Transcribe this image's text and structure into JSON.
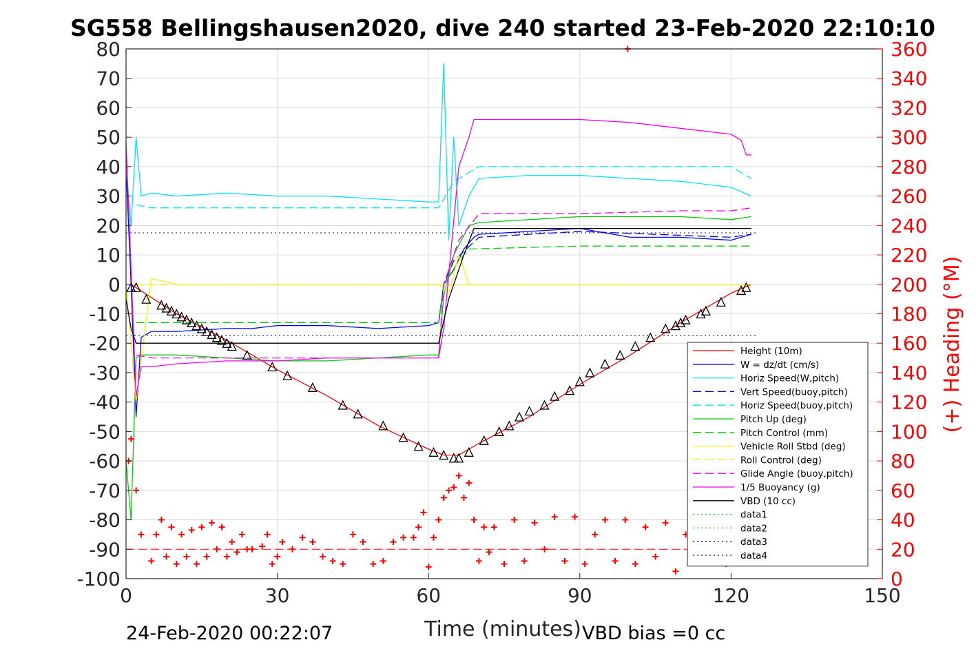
{
  "chart_data": {
    "type": "line",
    "title": "SG558 Bellingshausen2020, dive 240 started 23-Feb-2020 22:10:10",
    "xlabel": "Time (minutes)",
    "ylabel": "",
    "y2label": "(+) Heading (°M)",
    "xlim": [
      0,
      150
    ],
    "ylim": [
      -100,
      80
    ],
    "y2lim": [
      0,
      360
    ],
    "xticks": [
      "0",
      "30",
      "60",
      "90",
      "120",
      "150"
    ],
    "yticks": [
      "80",
      "70",
      "60",
      "50",
      "40",
      "30",
      "20",
      "10",
      "0",
      "-10",
      "-20",
      "-30",
      "-40",
      "-50",
      "-60",
      "-70",
      "-80",
      "-90",
      "-100"
    ],
    "y2ticks": [
      "360",
      "340",
      "320",
      "300",
      "280",
      "260",
      "240",
      "220",
      "200",
      "180",
      "160",
      "140",
      "120",
      "100",
      "80",
      "60",
      "40",
      "20",
      "0"
    ],
    "grid": true,
    "legend_position": "lower-right",
    "footer_left": "24-Feb-2020 00:22:07",
    "footer_right": "VBD bias =0 cc",
    "series": [
      {
        "name": "Height (10m)",
        "color": "#ff0000",
        "style": "solid",
        "x": [
          1,
          10,
          20,
          30,
          40,
          50,
          60,
          63,
          66,
          70,
          80,
          90,
          100,
          110,
          120,
          124
        ],
        "y": [
          0,
          -10,
          -19,
          -29,
          -38,
          -48,
          -56,
          -58,
          -58,
          -54,
          -45,
          -34,
          -24,
          -13,
          -3,
          0
        ]
      },
      {
        "name": "W = dz/dt (cm/s)",
        "color": "#0000ff",
        "style": "solid",
        "x": [
          0,
          1,
          2,
          3,
          5,
          10,
          20,
          25,
          30,
          40,
          50,
          60,
          62,
          63,
          65,
          67,
          69,
          70,
          80,
          90,
          100,
          110,
          120,
          124
        ],
        "y": [
          40,
          0,
          -45,
          -18,
          -16,
          -16,
          -15,
          -15,
          -14,
          -14,
          -15,
          -14,
          -13,
          0,
          5,
          12,
          16,
          17,
          18,
          19,
          16,
          16,
          15,
          17
        ]
      },
      {
        "name": "Horiz Speed(W,pitch)",
        "color": "#00e5ee",
        "style": "solid",
        "x": [
          0,
          1,
          2,
          3,
          5,
          10,
          20,
          30,
          40,
          50,
          60,
          62,
          63,
          64,
          65,
          66,
          68,
          70,
          80,
          90,
          100,
          110,
          120,
          124
        ],
        "y": [
          40,
          20,
          50,
          30,
          31,
          30,
          31,
          30,
          30,
          29,
          28,
          28,
          75,
          15,
          50,
          20,
          30,
          36,
          37,
          37,
          36,
          35,
          33,
          30
        ]
      },
      {
        "name": "Vert Speed(buoy,pitch)",
        "color": "#0000cc",
        "style": "dashed",
        "x": [
          2,
          20,
          40,
          60,
          62,
          63,
          65,
          70,
          90,
          120,
          124
        ],
        "y": [
          -13,
          -13,
          -13,
          -13,
          -13,
          0,
          8,
          16,
          18,
          16,
          17
        ]
      },
      {
        "name": "Horiz Speed(buoy,pitch)",
        "color": "#00e5ee",
        "style": "dashed",
        "x": [
          2,
          5,
          20,
          40,
          60,
          62,
          65,
          70,
          90,
          110,
          120,
          124
        ],
        "y": [
          27,
          26,
          26,
          26,
          26,
          26,
          35,
          40,
          40,
          40,
          40,
          36
        ]
      },
      {
        "name": "Pitch Up (deg)",
        "color": "#00cc00",
        "style": "solid",
        "x": [
          0,
          1,
          2,
          3,
          5,
          10,
          20,
          30,
          40,
          50,
          60,
          62,
          63,
          65,
          68,
          70,
          80,
          90,
          100,
          110,
          120,
          124
        ],
        "y": [
          -60,
          -80,
          -25,
          -24,
          -24,
          -24,
          -25,
          -26,
          -26,
          -25,
          -24,
          -24,
          -4,
          10,
          20,
          21,
          22,
          23,
          23,
          23,
          22,
          23
        ]
      },
      {
        "name": "Pitch Control (mm)",
        "color": "#00cc00",
        "style": "dashed",
        "x": [
          2,
          20,
          40,
          60,
          62,
          63,
          66,
          68,
          90,
          120,
          124
        ],
        "y": [
          -13,
          -13,
          -13,
          -13,
          -13,
          0,
          8,
          12,
          13,
          13,
          13
        ]
      },
      {
        "name": "Vehicle Roll Stbd (deg)",
        "color": "#ffee00",
        "style": "solid",
        "x": [
          0,
          2,
          5,
          10,
          20,
          30,
          40,
          50,
          60,
          62,
          64,
          66,
          68,
          70,
          80,
          90,
          100,
          110,
          120,
          124
        ],
        "y": [
          0,
          -40,
          2,
          0,
          0,
          0,
          0,
          0,
          0,
          0,
          -3,
          10,
          0,
          0,
          0,
          0,
          0,
          0,
          0,
          0
        ]
      },
      {
        "name": "Roll Control (deg)",
        "color": "#ffee00",
        "style": "dashed",
        "x": [
          2,
          20,
          40,
          60,
          70,
          90,
          110,
          124
        ],
        "y": [
          0,
          0,
          0,
          0,
          0,
          0,
          0,
          0
        ]
      },
      {
        "name": "Glide Angle (buoy,pitch)",
        "color": "#ee00ee",
        "style": "dashed",
        "x": [
          2,
          5,
          20,
          40,
          60,
          62,
          63,
          66,
          70,
          90,
          110,
          120,
          124
        ],
        "y": [
          -24,
          -25,
          -25,
          -25,
          -25,
          -25,
          0,
          15,
          24,
          24,
          25,
          25,
          26
        ]
      },
      {
        "name": "1/5 Buoyancy (g)",
        "color": "#ee00ee",
        "style": "solid",
        "x": [
          0,
          1,
          2,
          3,
          5,
          10,
          20,
          30,
          40,
          50,
          60,
          62,
          63,
          66,
          68,
          69,
          80,
          90,
          100,
          110,
          120,
          122,
          123,
          124
        ],
        "y": [
          48,
          5,
          -38,
          -28,
          -28,
          -27,
          -26,
          -26,
          -25,
          -25,
          -25,
          -25,
          -15,
          40,
          50,
          56,
          56,
          56,
          55,
          53,
          51,
          49,
          44,
          44
        ]
      },
      {
        "name": "VBD (10 cc)",
        "color": "#000000",
        "style": "solid",
        "x": [
          0,
          1,
          2,
          5,
          20,
          40,
          60,
          62,
          64,
          67,
          69,
          80,
          90,
          100,
          110,
          120,
          124
        ],
        "y": [
          -5,
          -15,
          -20,
          -20,
          -20,
          -20,
          -20,
          -20,
          -5,
          10,
          19,
          19,
          19,
          19,
          19,
          19,
          19
        ]
      },
      {
        "name": "data1",
        "color": "#00cc00",
        "style": "dotted",
        "x": [],
        "y": []
      },
      {
        "name": "data2",
        "color": "#00cc00",
        "style": "dotted",
        "x": [],
        "y": []
      },
      {
        "name": "data3",
        "color": "#0000aa",
        "style": "dotted",
        "x": [],
        "y": []
      },
      {
        "name": "data4",
        "color": "#0000aa",
        "style": "dotted",
        "x": [],
        "y": []
      }
    ],
    "reference_lines": [
      {
        "y": 17.5,
        "color": "#0000aa",
        "style": "dotted"
      },
      {
        "y": -17.5,
        "color": "#0000aa",
        "style": "dotted"
      },
      {
        "y": -90,
        "color": "#ff0000",
        "style": "dashed"
      }
    ],
    "heading_points": {
      "axis": "right",
      "color": "#ff0000",
      "marker": "+",
      "x": [
        0.5,
        1,
        2,
        3,
        5,
        6,
        7,
        8,
        9,
        10,
        11,
        12,
        13,
        14,
        15,
        16,
        17,
        18,
        19,
        20,
        21,
        22,
        23,
        24,
        25,
        27,
        28,
        29,
        30,
        31,
        33,
        35,
        37,
        39,
        41,
        43,
        45,
        47,
        49,
        51,
        53,
        55,
        57,
        58,
        59,
        60,
        61,
        62,
        63,
        64,
        65,
        66,
        67,
        68,
        69,
        70,
        71,
        72,
        73,
        75,
        77,
        79,
        81,
        83,
        85,
        87,
        89,
        91,
        93,
        95,
        97,
        99,
        101,
        103,
        105,
        107,
        109,
        111,
        113,
        115,
        117,
        119,
        121,
        123,
        99.5
      ],
      "y": [
        80,
        95,
        60,
        30,
        12,
        30,
        40,
        15,
        35,
        10,
        30,
        15,
        33,
        10,
        35,
        15,
        38,
        20,
        35,
        15,
        25,
        18,
        30,
        20,
        20,
        22,
        30,
        10,
        15,
        25,
        20,
        28,
        25,
        15,
        12,
        10,
        30,
        25,
        10,
        12,
        25,
        28,
        28,
        35,
        45,
        8,
        28,
        40,
        55,
        60,
        62,
        70,
        55,
        65,
        40,
        12,
        35,
        18,
        35,
        10,
        40,
        12,
        38,
        20,
        42,
        12,
        42,
        10,
        30,
        40,
        12,
        40,
        10,
        35,
        15,
        38,
        5,
        30,
        15,
        20,
        25,
        10,
        35,
        15,
        360
      ]
    },
    "depth_markers": {
      "color": "#000000",
      "marker": "triangle",
      "x": [
        1,
        2,
        4,
        7,
        8,
        9,
        10,
        11,
        12,
        13,
        14,
        15,
        16,
        17,
        18,
        19,
        20,
        21,
        24,
        29,
        32,
        37,
        43,
        46,
        51,
        55,
        58,
        61,
        63,
        65,
        66,
        68,
        71,
        74,
        76,
        78,
        80,
        83,
        85,
        88,
        90,
        92,
        95,
        98,
        101,
        104,
        107,
        109,
        110,
        111,
        114,
        115,
        118,
        122,
        123
      ],
      "y": [
        -1,
        -1,
        -5,
        -7,
        -8,
        -9,
        -10,
        -11,
        -12,
        -13,
        -14,
        -15,
        -16,
        -17,
        -18,
        -19,
        -20,
        -21,
        -24,
        -28,
        -31,
        -35,
        -41,
        -44,
        -48,
        -52,
        -55,
        -57,
        -58,
        -59,
        -59,
        -57,
        -53,
        -50,
        -48,
        -45,
        -43,
        -41,
        -38,
        -36,
        -33,
        -30,
        -27,
        -24,
        -21,
        -18,
        -15,
        -14,
        -13,
        -12,
        -10,
        -9,
        -6,
        -2,
        -1
      ]
    }
  }
}
